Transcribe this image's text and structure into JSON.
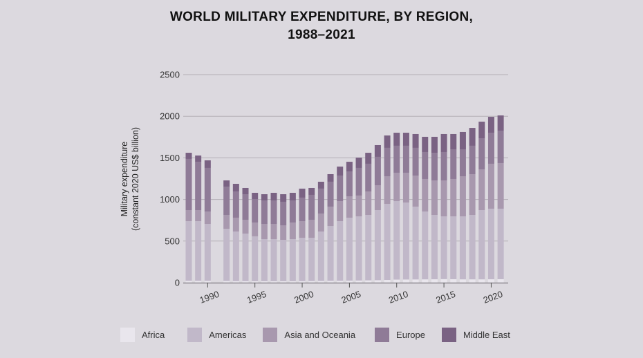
{
  "chart_data": {
    "type": "bar",
    "stacked": true,
    "title": [
      "WORLD MILITARY EXPENDITURE, BY REGION,",
      "1988–2021"
    ],
    "ylabel": [
      "Military expenditure",
      "(constant 2020 US$ billion)"
    ],
    "xlabel": "",
    "ylim": [
      0,
      2500
    ],
    "yticks": [
      0,
      500,
      1000,
      1500,
      2000,
      2500
    ],
    "xticks": [
      1990,
      1995,
      2000,
      2005,
      2010,
      2015,
      2020
    ],
    "grid": true,
    "legend_position": "bottom",
    "categories": [
      1988,
      1989,
      1990,
      1992,
      1993,
      1994,
      1995,
      1996,
      1997,
      1998,
      1999,
      2000,
      2001,
      2002,
      2003,
      2004,
      2005,
      2006,
      2007,
      2008,
      2009,
      2010,
      2011,
      2012,
      2013,
      2014,
      2015,
      2016,
      2017,
      2018,
      2019,
      2020,
      2021
    ],
    "series": [
      {
        "name": "Africa",
        "color": "#e9e6ed",
        "values": [
          22,
          22,
          22,
          20,
          18,
          18,
          17,
          17,
          17,
          17,
          17,
          18,
          19,
          20,
          21,
          22,
          24,
          26,
          28,
          30,
          33,
          37,
          38,
          39,
          40,
          41,
          43,
          42,
          40,
          40,
          40,
          41,
          42
        ]
      },
      {
        "name": "Americas",
        "color": "#c1b8c9",
        "values": [
          717,
          717,
          684,
          628,
          597,
          572,
          540,
          506,
          506,
          498,
          506,
          522,
          521,
          595,
          660,
          717,
          757,
          771,
          786,
          842,
          914,
          943,
          925,
          875,
          815,
          773,
          754,
          755,
          757,
          774,
          832,
          848,
          847
        ]
      },
      {
        "name": "Asia and Oceania",
        "color": "#a898ae",
        "values": [
          133,
          133,
          149,
          166,
          166,
          166,
          166,
          183,
          183,
          174,
          200,
          199,
          216,
          216,
          233,
          241,
          257,
          250,
          282,
          299,
          332,
          341,
          358,
          373,
          391,
          415,
          432,
          449,
          482,
          490,
          490,
          540,
          548
        ]
      },
      {
        "name": "Europe",
        "color": "#8f7b97",
        "values": [
          615,
          581,
          524,
          340,
          315,
          307,
          282,
          282,
          282,
          283,
          265,
          283,
          299,
          299,
          299,
          307,
          299,
          332,
          333,
          341,
          341,
          324,
          324,
          333,
          324,
          332,
          341,
          357,
          324,
          341,
          374,
          373,
          390
        ]
      },
      {
        "name": "Middle East",
        "color": "#7a6283",
        "values": [
          74,
          75,
          91,
          75,
          92,
          75,
          75,
          75,
          92,
          91,
          92,
          108,
          83,
          83,
          91,
          108,
          116,
          124,
          132,
          141,
          149,
          157,
          157,
          166,
          183,
          192,
          216,
          183,
          208,
          215,
          199,
          191,
          183
        ]
      }
    ]
  }
}
